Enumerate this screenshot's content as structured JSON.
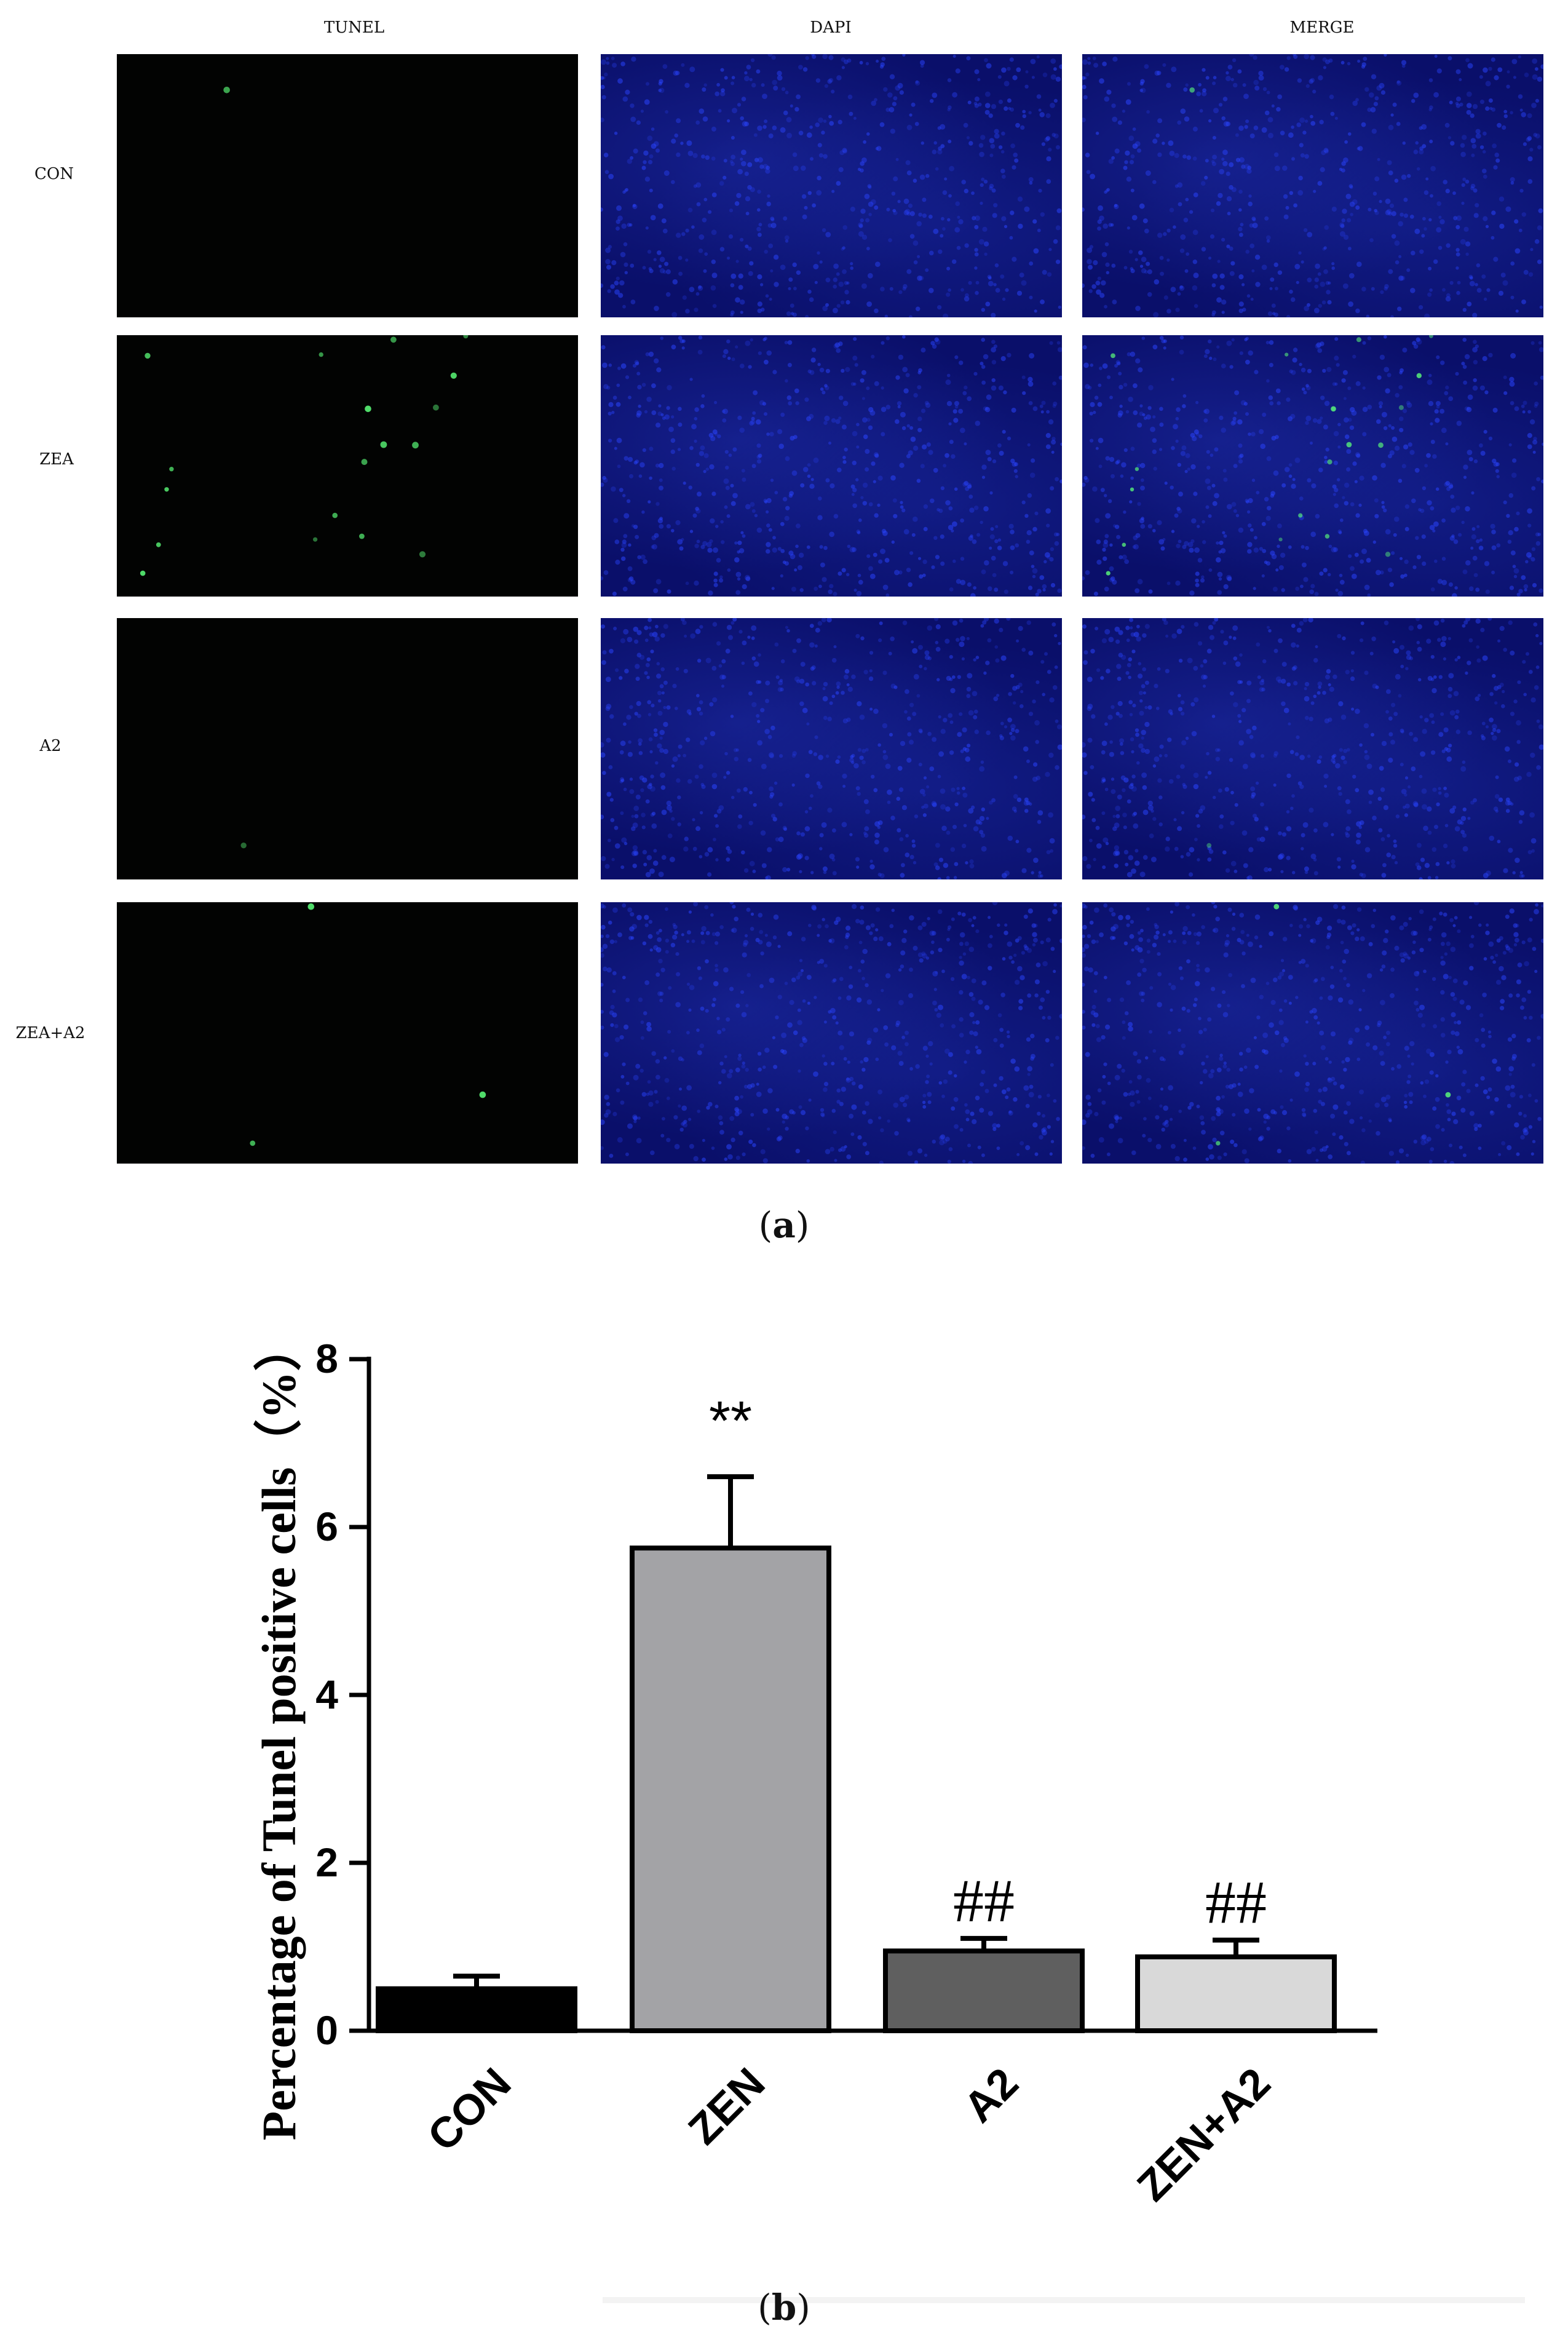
{
  "panel_a": {
    "column_labels": [
      "TUNEL",
      "DAPI",
      "MERGE"
    ],
    "row_labels": [
      "CON",
      "ZEA",
      "A2",
      "ZEA+A2"
    ],
    "caption_open": "(",
    "caption_letter": "a",
    "caption_close": ")"
  },
  "panel_b": {
    "caption_open": "(",
    "caption_letter": "b",
    "caption_close": ")"
  },
  "colors": {
    "tunel_bg": "#020302",
    "dapi_bg": "#0a0f6a",
    "tunel_dot": "#5cff7a",
    "dapi_dot": "#2a44ff"
  },
  "chart_data": {
    "type": "bar",
    "title": "",
    "xlabel": "",
    "ylabel": "Percentage of Tunel positive cells（%）",
    "categories": [
      "CON",
      "ZEN",
      "A2",
      "ZEN+A2"
    ],
    "values": [
      0.5,
      5.75,
      0.95,
      0.88
    ],
    "errors": [
      0.15,
      0.85,
      0.15,
      0.2
    ],
    "bar_colors": [
      "#000000",
      "#a3a3a6",
      "#5f5f5f",
      "#d9d9d9"
    ],
    "annotations": [
      "",
      "**",
      "##",
      "##"
    ],
    "ylim": [
      0,
      8
    ],
    "yticks": [
      0,
      2,
      4,
      6,
      8
    ],
    "grid": false
  }
}
